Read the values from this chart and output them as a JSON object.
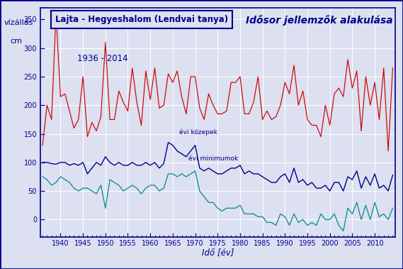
{
  "title_box": "Lajta - Hegyeshalom (Lendvai tanya)",
  "subtitle_box": "1936 - 2014",
  "title_right": "Idősor jellemzők alakulása",
  "ylabel_top": "vízállás",
  "ylabel_bot": "cm",
  "xlabel": "Idő [év]",
  "label_kozepek": "évi közepek",
  "label_minimumok": "évi minimumok",
  "years": [
    1936,
    1937,
    1938,
    1939,
    1940,
    1941,
    1942,
    1943,
    1944,
    1945,
    1946,
    1947,
    1948,
    1949,
    1950,
    1951,
    1952,
    1953,
    1954,
    1955,
    1956,
    1957,
    1958,
    1959,
    1960,
    1961,
    1962,
    1963,
    1964,
    1965,
    1966,
    1967,
    1968,
    1969,
    1970,
    1971,
    1972,
    1973,
    1974,
    1975,
    1976,
    1977,
    1978,
    1979,
    1980,
    1981,
    1982,
    1983,
    1984,
    1985,
    1986,
    1987,
    1988,
    1989,
    1990,
    1991,
    1992,
    1993,
    1994,
    1995,
    1996,
    1997,
    1998,
    1999,
    2000,
    2001,
    2002,
    2003,
    2004,
    2005,
    2006,
    2007,
    2008,
    2009,
    2010,
    2011,
    2012,
    2013,
    2014
  ],
  "maximums": [
    130,
    200,
    175,
    360,
    215,
    220,
    190,
    160,
    175,
    250,
    145,
    170,
    155,
    180,
    310,
    175,
    175,
    225,
    205,
    190,
    265,
    205,
    165,
    260,
    210,
    265,
    195,
    200,
    255,
    240,
    260,
    215,
    185,
    250,
    250,
    195,
    175,
    220,
    200,
    185,
    185,
    190,
    240,
    240,
    250,
    185,
    185,
    205,
    250,
    175,
    190,
    175,
    180,
    200,
    240,
    220,
    270,
    200,
    225,
    175,
    165,
    165,
    145,
    200,
    165,
    220,
    230,
    215,
    280,
    230,
    260,
    155,
    250,
    200,
    240,
    175,
    265,
    120,
    265
  ],
  "means": [
    100,
    100,
    98,
    97,
    100,
    100,
    95,
    98,
    95,
    100,
    80,
    90,
    100,
    95,
    110,
    100,
    95,
    100,
    95,
    95,
    100,
    95,
    95,
    100,
    95,
    100,
    90,
    98,
    135,
    130,
    120,
    115,
    110,
    120,
    130,
    90,
    85,
    90,
    85,
    80,
    80,
    85,
    90,
    90,
    95,
    80,
    85,
    80,
    80,
    75,
    70,
    65,
    65,
    75,
    80,
    65,
    90,
    65,
    70,
    60,
    65,
    55,
    55,
    60,
    50,
    65,
    65,
    50,
    75,
    70,
    85,
    55,
    75,
    60,
    80,
    55,
    60,
    50,
    78
  ],
  "minimums": [
    75,
    70,
    60,
    65,
    75,
    70,
    65,
    55,
    50,
    55,
    55,
    50,
    45,
    60,
    20,
    70,
    65,
    60,
    50,
    55,
    60,
    55,
    45,
    55,
    60,
    60,
    50,
    55,
    80,
    80,
    75,
    80,
    75,
    80,
    85,
    50,
    40,
    30,
    30,
    20,
    15,
    20,
    20,
    20,
    25,
    10,
    10,
    10,
    5,
    5,
    -5,
    -5,
    -10,
    10,
    5,
    -10,
    10,
    -5,
    0,
    -10,
    -5,
    -10,
    10,
    0,
    0,
    10,
    -10,
    -20,
    20,
    10,
    30,
    0,
    25,
    0,
    30,
    5,
    10,
    0,
    20
  ],
  "color_max": "#cc0000",
  "color_mean": "#00008b",
  "color_min": "#008b8b",
  "bg_color": "#dce0f0",
  "plot_bg": "#dce0f0",
  "border_color": "#00008b",
  "ylim": [
    -30,
    370
  ],
  "yticks": [
    0,
    50,
    100,
    150,
    200,
    250,
    300,
    350
  ],
  "xlim": [
    1935.5,
    2014.5
  ],
  "xticks": [
    1940,
    1945,
    1950,
    1955,
    1960,
    1965,
    1970,
    1975,
    1980,
    1985,
    1990,
    1995,
    2000,
    2005,
    2010
  ]
}
